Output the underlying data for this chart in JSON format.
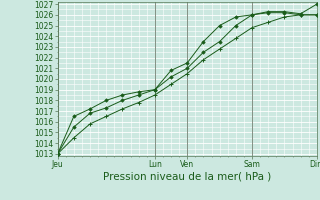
{
  "bg_color": "#cce8e0",
  "grid_color": "#ffffff",
  "line_color": "#1a5c1a",
  "marker_color": "#1a5c1a",
  "ylabel_ticks": [
    1013,
    1014,
    1015,
    1016,
    1017,
    1018,
    1019,
    1020,
    1021,
    1022,
    1023,
    1024,
    1025,
    1026,
    1027
  ],
  "ylim": [
    1012.8,
    1027.2
  ],
  "xlabel": "Pression niveau de la mer( hPa )",
  "xtick_labels": [
    "Jeu",
    "Lun",
    "Ven",
    "Sam",
    "Dim"
  ],
  "xtick_positions": [
    0,
    30,
    40,
    60,
    80
  ],
  "x_total": 80,
  "series1_x": [
    0,
    5,
    10,
    15,
    20,
    25,
    30,
    35,
    40,
    45,
    50,
    55,
    60,
    65,
    70,
    75,
    80
  ],
  "series1_y": [
    1013.0,
    1015.5,
    1016.8,
    1017.3,
    1018.0,
    1018.5,
    1019.0,
    1020.2,
    1021.0,
    1022.5,
    1023.5,
    1025.0,
    1026.0,
    1026.2,
    1026.2,
    1026.0,
    1026.0
  ],
  "series2_x": [
    0,
    5,
    10,
    15,
    20,
    25,
    30,
    35,
    40,
    45,
    50,
    55,
    60,
    65,
    70,
    75,
    80
  ],
  "series2_y": [
    1013.0,
    1016.5,
    1017.2,
    1018.0,
    1018.5,
    1018.8,
    1019.0,
    1020.8,
    1021.5,
    1023.5,
    1025.0,
    1025.8,
    1026.0,
    1026.3,
    1026.3,
    1026.1,
    1027.0
  ],
  "series3_x": [
    0,
    5,
    10,
    15,
    20,
    25,
    30,
    35,
    40,
    45,
    50,
    55,
    60,
    65,
    70,
    75,
    80
  ],
  "series3_y": [
    1013.0,
    1014.5,
    1015.8,
    1016.5,
    1017.2,
    1017.8,
    1018.5,
    1019.5,
    1020.5,
    1021.8,
    1022.8,
    1023.8,
    1024.8,
    1025.3,
    1025.8,
    1026.0,
    1026.0
  ],
  "vline_positions": [
    0,
    30,
    40,
    60,
    80
  ],
  "tick_fontsize": 5.5,
  "xlabel_fontsize": 7.5
}
